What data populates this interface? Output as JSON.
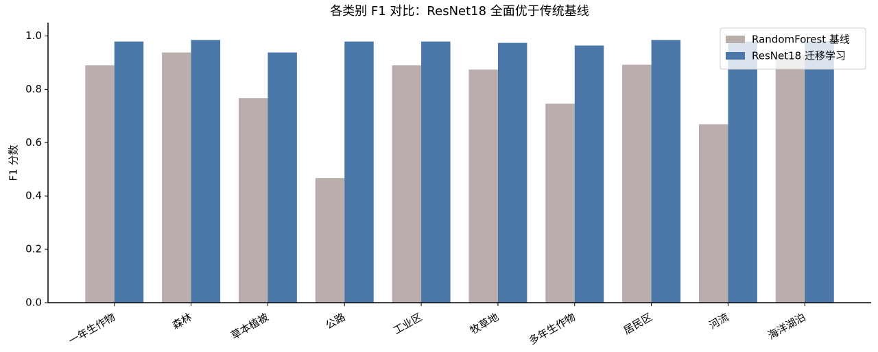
{
  "chart_data": {
    "type": "bar",
    "title": "各类别 F1 对比：ResNet18 全面优于传统基线",
    "y_label": "F1 分数",
    "categories": [
      "一年生作物",
      "森林",
      "草本植被",
      "公路",
      "工业区",
      "牧草地",
      "多年生作物",
      "居民区",
      "河流",
      "海洋湖泊"
    ],
    "series": [
      {
        "name": "RandomForest 基线",
        "color": "#b9aeab",
        "values": [
          0.89,
          0.938,
          0.767,
          0.467,
          0.89,
          0.874,
          0.746,
          0.892,
          0.669,
          0.93
        ]
      },
      {
        "name": "ResNet18 迁移学习",
        "color": "#4a77a8",
        "values": [
          0.979,
          0.985,
          0.938,
          0.979,
          0.979,
          0.974,
          0.964,
          0.985,
          0.979,
          0.98
        ]
      }
    ],
    "ylim": [
      0,
      1.05
    ],
    "yticks": [
      {
        "value": 0,
        "label": "0.0"
      },
      0.2,
      0.4,
      0.6,
      0.8,
      {
        "value": 1,
        "label": "1.0"
      }
    ],
    "legend": "upper right",
    "grid": false
  }
}
